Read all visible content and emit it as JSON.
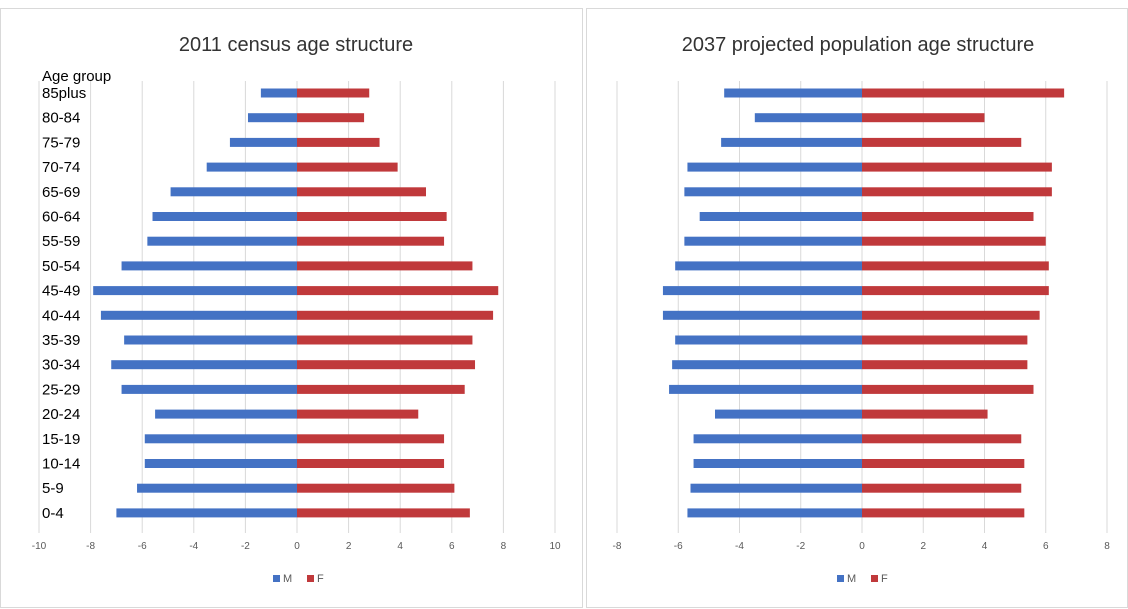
{
  "chart_data": [
    {
      "type": "bar",
      "orientation": "horizontal",
      "title": "2011 census age structure",
      "category_header": "Age group",
      "categories": [
        "85plus",
        "80-84",
        "75-79",
        "70-74",
        "65-69",
        "60-64",
        "55-59",
        "50-54",
        "45-49",
        "40-44",
        "35-39",
        "30-34",
        "25-29",
        "20-24",
        "15-19",
        "10-14",
        "5-9",
        "0-4"
      ],
      "series": [
        {
          "name": "M",
          "color": "#4472c4",
          "values": [
            -1.4,
            -1.9,
            -2.6,
            -3.5,
            -4.9,
            -5.6,
            -5.8,
            -6.8,
            -7.9,
            -7.6,
            -6.7,
            -7.2,
            -6.8,
            -5.5,
            -5.9,
            -5.9,
            -6.2,
            -7.0
          ]
        },
        {
          "name": "F",
          "color": "#c0393b",
          "values": [
            2.8,
            2.6,
            3.2,
            3.9,
            5.0,
            5.8,
            5.7,
            6.8,
            7.8,
            7.6,
            6.8,
            6.9,
            6.5,
            4.7,
            5.7,
            5.7,
            6.1,
            6.7
          ]
        }
      ],
      "xlim": [
        -10,
        10
      ],
      "xticks": [
        "-10",
        "-8",
        "-6",
        "-4",
        "-2",
        "0",
        "2",
        "4",
        "6",
        "8",
        "10"
      ],
      "grid": true,
      "legend": "bottom"
    },
    {
      "type": "bar",
      "orientation": "horizontal",
      "title": "2037 projected population age structure",
      "categories": [
        "85plus",
        "80-84",
        "75-79",
        "70-74",
        "65-69",
        "60-64",
        "55-59",
        "50-54",
        "45-49",
        "40-44",
        "35-39",
        "30-34",
        "25-29",
        "20-24",
        "15-19",
        "10-14",
        "5-9",
        "0-4"
      ],
      "series": [
        {
          "name": "M",
          "color": "#4472c4",
          "values": [
            -4.5,
            -3.5,
            -4.6,
            -5.7,
            -5.8,
            -5.3,
            -5.8,
            -6.1,
            -6.5,
            -6.5,
            -6.1,
            -6.2,
            -6.3,
            -4.8,
            -5.5,
            -5.5,
            -5.6,
            -5.7
          ]
        },
        {
          "name": "F",
          "color": "#c0393b",
          "values": [
            6.6,
            4.0,
            5.2,
            6.2,
            6.2,
            5.6,
            6.0,
            6.1,
            6.1,
            5.8,
            5.4,
            5.4,
            5.6,
            4.1,
            5.2,
            5.3,
            5.2,
            5.3
          ]
        }
      ],
      "xlim": [
        -8,
        8
      ],
      "xticks": [
        "-8",
        "-6",
        "-4",
        "-2",
        "0",
        "2",
        "4",
        "6",
        "8"
      ],
      "grid": true,
      "legend": "bottom"
    }
  ]
}
